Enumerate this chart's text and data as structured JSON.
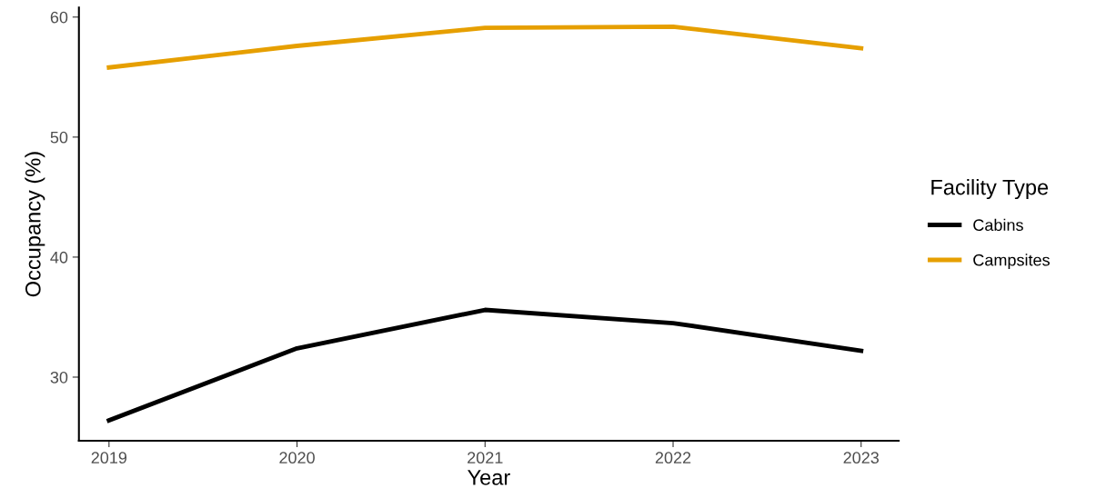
{
  "chart_data": {
    "type": "line",
    "xlabel": "Year",
    "ylabel": "Occupancy (%)",
    "legend_title": "Facility Type",
    "x": [
      2019,
      2020,
      2021,
      2022,
      2023
    ],
    "series": [
      {
        "name": "Cabins",
        "color": "#000000",
        "values": [
          26.4,
          32.4,
          35.6,
          34.5,
          32.2
        ]
      },
      {
        "name": "Campsites",
        "color": "#e69f00",
        "values": [
          55.8,
          57.6,
          59.1,
          59.2,
          57.4
        ]
      }
    ],
    "xlim": [
      2018.84,
      2023.2
    ],
    "xticks": [
      2019,
      2020,
      2021,
      2022,
      2023
    ],
    "ylim": [
      24.7,
      60.8
    ],
    "yticks": [
      30,
      40,
      50,
      60
    ],
    "grid": false,
    "legend": "right",
    "marker": "none",
    "line_style": "solid"
  }
}
